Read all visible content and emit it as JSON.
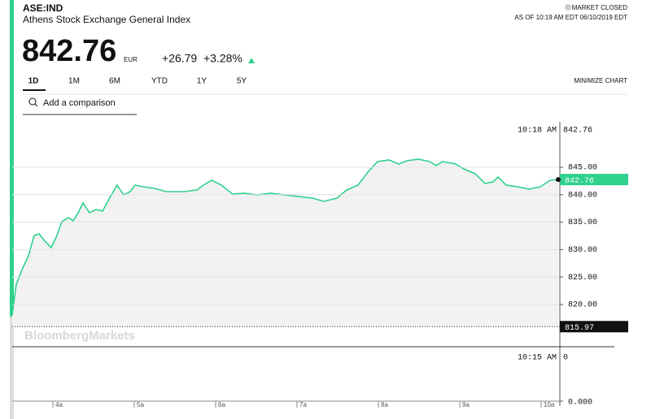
{
  "header": {
    "symbol": "ASE:IND",
    "name": "Athens Stock Exchange General Index",
    "status": "MARKET CLOSED",
    "as_of": "AS OF 10:19 AM EDT 06/10/2019 EDT",
    "price": "842.76",
    "currency": "EUR",
    "change": "+26.79",
    "change_pct": "+3.28%"
  },
  "tabs": [
    "1D",
    "1M",
    "6M",
    "YTD",
    "1Y",
    "5Y"
  ],
  "minimize": "MINIMIZE CHART",
  "search_placeholder": "Add a comparison",
  "chart_data": {
    "type": "line",
    "color": "#2fd18c",
    "x": [
      3.5,
      3.55,
      3.63,
      3.7,
      3.77,
      3.83,
      3.91,
      3.98,
      4.05,
      4.11,
      4.19,
      4.25,
      4.31,
      4.37,
      4.45,
      4.53,
      4.61,
      4.69,
      4.79,
      4.87,
      4.95,
      5.01,
      5.11,
      5.25,
      5.39,
      5.49,
      5.61,
      5.77,
      5.85,
      5.95,
      6.07,
      6.21,
      6.35,
      6.51,
      6.67,
      6.85,
      7.01,
      7.19,
      7.33,
      7.49,
      7.61,
      7.75,
      7.87,
      7.99,
      8.13,
      8.25,
      8.35,
      8.49,
      8.63,
      8.71,
      8.79,
      8.95,
      9.05,
      9.19,
      9.31,
      9.41,
      9.47,
      9.57,
      9.71,
      9.85,
      9.99,
      10.11,
      10.21
    ],
    "series": [
      {
        "name": "ASE:IND",
        "color": "#2fd18c",
        "values": [
          818.08,
          823.7,
          826.66,
          828.88,
          832.58,
          832.87,
          831.39,
          830.36,
          832.58,
          835.09,
          835.83,
          835.24,
          836.72,
          838.49,
          836.72,
          837.31,
          837.01,
          839.23,
          841.75,
          839.97,
          840.56,
          841.75,
          841.45,
          841.15,
          840.56,
          840.56,
          840.56,
          840.86,
          841.75,
          842.63,
          841.75,
          840.12,
          840.27,
          839.97,
          840.27,
          839.97,
          839.68,
          839.38,
          838.79,
          839.38,
          840.86,
          841.75,
          844.11,
          846.04,
          846.33,
          845.59,
          846.18,
          846.48,
          846.04,
          845.3,
          846.04,
          845.59,
          844.7,
          843.82,
          842.04,
          842.34,
          843.23,
          841.75,
          841.45,
          841.01,
          841.45,
          842.63,
          842.76
        ]
      }
    ],
    "xlim": [
      3.5,
      10.23
    ],
    "xticks": [
      {
        "value": 4,
        "label": "4a"
      },
      {
        "value": 5,
        "label": "5a"
      },
      {
        "value": 6,
        "label": "6a"
      },
      {
        "value": 7,
        "label": "7a"
      },
      {
        "value": 8,
        "label": "8a"
      },
      {
        "value": 9,
        "label": "9a"
      },
      {
        "value": 10,
        "label": "10a"
      }
    ],
    "ylim": [
      815.86,
      853.28
    ],
    "yticks": [
      {
        "value": 820,
        "label": "820.00"
      },
      {
        "value": 825,
        "label": "825.00"
      },
      {
        "value": 830,
        "label": "830.00"
      },
      {
        "value": 835,
        "label": "835.00"
      },
      {
        "value": 840,
        "label": "840.00"
      },
      {
        "value": 845,
        "label": "845.00"
      }
    ],
    "grid": true,
    "previous_close": {
      "value": 815.97,
      "label": "815.97"
    },
    "last": {
      "value": 842.76,
      "label": "842.76"
    },
    "crosshair": {
      "time": "10:18 AM",
      "value": "842.76"
    },
    "watermark": "BloombergMarkets",
    "volume": {
      "time": "10:15 AM",
      "value": "0",
      "axis_label": "0.000"
    }
  }
}
